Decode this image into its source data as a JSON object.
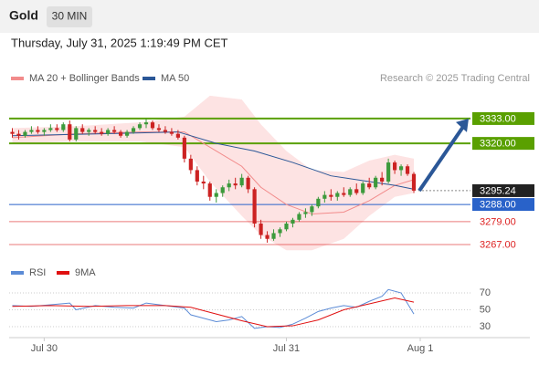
{
  "header": {
    "title": "Gold",
    "interval": "30 MIN",
    "timestamp": "Thursday, July 31, 2025 1:19:49 PM CET",
    "credit": "Research © 2025 Trading Central"
  },
  "chart_data": [
    {
      "type": "candlestick",
      "up_color": "#3c9a3c",
      "down_color": "#cc2222",
      "xlim": [
        -0.5,
        64
      ],
      "ylim": [
        3256.5,
        3347.3
      ],
      "xticks": [
        {
          "value": 5,
          "label": "Jul 30"
        },
        {
          "value": 43,
          "label": "Jul 31"
        },
        {
          "value": 64,
          "label": "Aug 1"
        }
      ],
      "candles": [
        [
          3326,
          3328,
          3323,
          3325
        ],
        [
          3325,
          3327,
          3322,
          3324
        ],
        [
          3324,
          3327,
          3323,
          3326
        ],
        [
          3326,
          3329,
          3325,
          3327
        ],
        [
          3327,
          3329,
          3325,
          3326
        ],
        [
          3326,
          3328,
          3324,
          3327
        ],
        [
          3327,
          3330,
          3326,
          3328
        ],
        [
          3328,
          3330,
          3326,
          3327
        ],
        [
          3327,
          3331,
          3326,
          3330
        ],
        [
          3330,
          3332,
          3321,
          3322
        ],
        [
          3322,
          3329,
          3321,
          3328
        ],
        [
          3328,
          3330,
          3325,
          3326
        ],
        [
          3326,
          3328,
          3324,
          3327
        ],
        [
          3327,
          3329,
          3325,
          3326
        ],
        [
          3326,
          3328,
          3324,
          3325
        ],
        [
          3325,
          3328,
          3324,
          3327
        ],
        [
          3327,
          3329,
          3325,
          3326
        ],
        [
          3326,
          3327,
          3323,
          3324
        ],
        [
          3324,
          3327,
          3323,
          3326
        ],
        [
          3326,
          3329,
          3325,
          3328
        ],
        [
          3328,
          3331,
          3327,
          3330
        ],
        [
          3330,
          3333,
          3328,
          3331
        ],
        [
          3331,
          3332,
          3327,
          3328
        ],
        [
          3328,
          3330,
          3326,
          3327
        ],
        [
          3327,
          3329,
          3325,
          3326
        ],
        [
          3326,
          3328,
          3324,
          3325
        ],
        [
          3325,
          3327,
          3322,
          3323
        ],
        [
          3323,
          3324,
          3310,
          3312
        ],
        [
          3312,
          3314,
          3304,
          3306
        ],
        [
          3306,
          3308,
          3298,
          3300
        ],
        [
          3300,
          3303,
          3296,
          3299
        ],
        [
          3299,
          3300,
          3290,
          3292
        ],
        [
          3292,
          3296,
          3289,
          3294
        ],
        [
          3294,
          3298,
          3292,
          3297
        ],
        [
          3297,
          3301,
          3295,
          3299
        ],
        [
          3299,
          3302,
          3296,
          3298
        ],
        [
          3298,
          3304,
          3297,
          3302
        ],
        [
          3302,
          3303,
          3294,
          3296
        ],
        [
          3296,
          3297,
          3276,
          3278
        ],
        [
          3278,
          3280,
          3270,
          3272
        ],
        [
          3272,
          3274,
          3268,
          3270
        ],
        [
          3270,
          3275,
          3269,
          3273
        ],
        [
          3273,
          3276,
          3271,
          3275
        ],
        [
          3275,
          3279,
          3274,
          3278
        ],
        [
          3278,
          3281,
          3276,
          3280
        ],
        [
          3280,
          3284,
          3279,
          3283
        ],
        [
          3283,
          3286,
          3281,
          3284
        ],
        [
          3284,
          3288,
          3282,
          3287
        ],
        [
          3287,
          3292,
          3286,
          3291
        ],
        [
          3291,
          3295,
          3289,
          3293
        ],
        [
          3293,
          3296,
          3290,
          3292
        ],
        [
          3292,
          3295,
          3290,
          3294
        ],
        [
          3294,
          3297,
          3292,
          3293
        ],
        [
          3293,
          3297,
          3292,
          3296
        ],
        [
          3296,
          3299,
          3293,
          3294
        ],
        [
          3294,
          3300,
          3293,
          3299
        ],
        [
          3299,
          3302,
          3296,
          3297
        ],
        [
          3297,
          3303,
          3296,
          3302
        ],
        [
          3302,
          3305,
          3298,
          3300
        ],
        [
          3300,
          3312,
          3299,
          3310
        ],
        [
          3310,
          3311,
          3304,
          3306
        ],
        [
          3306,
          3309,
          3303,
          3308
        ],
        [
          3308,
          3309,
          3303,
          3304
        ],
        [
          3304,
          3305,
          3294,
          3295.24
        ]
      ],
      "series": [
        {
          "name": "MA 20 + Bollinger Bands",
          "color": "#f28b8b",
          "band_color": "#fde3e3",
          "x": [
            0,
            10,
            20,
            27,
            31,
            36,
            39,
            43,
            47,
            52,
            56,
            60,
            63
          ],
          "values": [
            3323,
            3325,
            3326,
            3326,
            3318,
            3308,
            3297,
            3288,
            3283,
            3284,
            3290,
            3298,
            3301
          ],
          "upper": [
            3328,
            3329,
            3331,
            3334,
            3345,
            3343,
            3330,
            3316,
            3306,
            3305,
            3311,
            3314,
            3312
          ],
          "lower": [
            3320,
            3321,
            3321,
            3318,
            3300,
            3282,
            3272,
            3264,
            3264,
            3270,
            3282,
            3292,
            3294
          ]
        },
        {
          "name": "MA 50",
          "color": "#2b5797",
          "x": [
            0,
            14,
            26,
            32,
            38,
            44,
            50,
            56,
            60,
            63
          ],
          "values": [
            3324,
            3325,
            3326,
            3320,
            3316,
            3310,
            3303,
            3300,
            3298,
            3296
          ]
        }
      ],
      "levels": [
        {
          "value": 3333,
          "label": "3333.00",
          "color": "#5aa000",
          "boxed": true,
          "line": "solid"
        },
        {
          "value": 3320,
          "label": "3320.00",
          "color": "#5aa000",
          "boxed": true,
          "line": "solid"
        },
        {
          "value": 3295.24,
          "label": "3295.24",
          "color": "#222222",
          "boxed": true,
          "line": "dotted"
        },
        {
          "value": 3288,
          "label": "3288.00",
          "color": "#2962c9",
          "boxed": true,
          "line": "solid"
        },
        {
          "value": 3279,
          "label": "3279.00",
          "color": "#dd2222",
          "boxed": false,
          "line": "solid"
        },
        {
          "value": 3267,
          "label": "3267.00",
          "color": "#dd2222",
          "boxed": false,
          "line": "solid"
        }
      ]
    },
    {
      "type": "line",
      "xlim": [
        -0.5,
        64
      ],
      "ylim": [
        17,
        81.9
      ],
      "yticks": [
        30,
        50,
        70
      ],
      "grid": true,
      "series": [
        {
          "name": "RSI",
          "color": "#5b8bd6",
          "x": [
            0,
            3,
            6,
            9,
            10,
            13,
            16,
            19,
            21,
            24,
            27,
            28,
            30,
            32,
            34,
            36,
            38,
            40,
            42,
            44,
            46,
            48,
            50,
            52,
            54,
            56,
            58,
            59,
            61,
            63
          ],
          "values": [
            55,
            54,
            56,
            58,
            50,
            55,
            53,
            52,
            58,
            55,
            52,
            44,
            40,
            36,
            38,
            42,
            28,
            30,
            29,
            33,
            40,
            48,
            52,
            55,
            53,
            60,
            66,
            74,
            70,
            45
          ]
        },
        {
          "name": "9MA",
          "color": "#e01010",
          "x": [
            0,
            6,
            12,
            18,
            24,
            28,
            32,
            36,
            40,
            44,
            48,
            52,
            56,
            60,
            63
          ],
          "values": [
            54,
            55,
            54,
            55,
            55,
            53,
            45,
            37,
            30,
            31,
            38,
            50,
            57,
            64,
            59
          ]
        }
      ]
    }
  ]
}
